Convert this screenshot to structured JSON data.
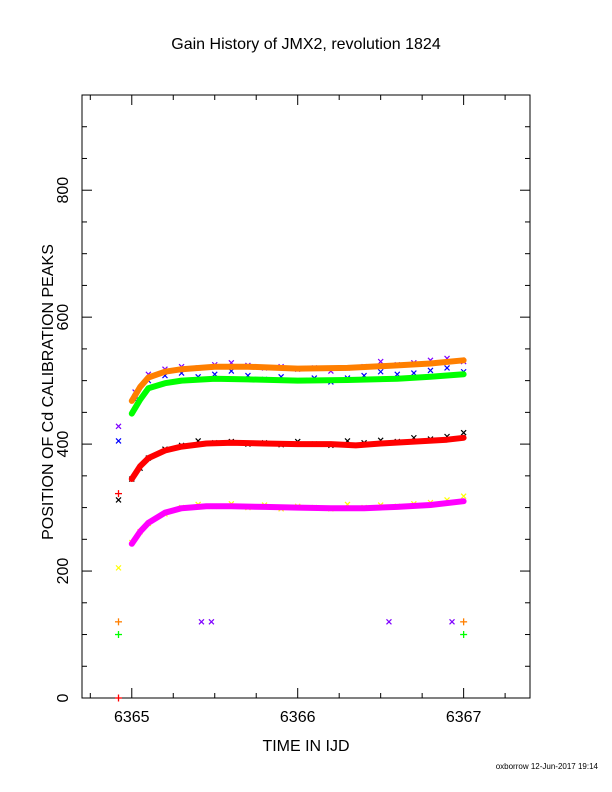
{
  "chart_data": {
    "type": "scatter",
    "title": "Gain History of JMX2, revolution 1824",
    "xlabel": "TIME IN IJD",
    "ylabel": "POSITION OF Cd CALIBRATION PEAKS",
    "xlim": [
      6364.7,
      6367.4
    ],
    "ylim": [
      0,
      950
    ],
    "x_ticks": [
      "6365",
      "6366",
      "6367"
    ],
    "y_ticks": [
      "0",
      "200",
      "400",
      "600",
      "800"
    ],
    "grid": false,
    "series": [
      {
        "color": "#7f00ff",
        "marker": "x",
        "x": [
          6364.92,
          6365.02,
          6365.1,
          6365.2,
          6365.3,
          6365.4,
          6365.5,
          6365.6,
          6365.7,
          6365.8,
          6365.9,
          6366.0,
          6366.1,
          6366.2,
          6366.3,
          6366.4,
          6366.5,
          6366.6,
          6366.7,
          6366.8,
          6366.9,
          6367.0
        ],
        "y": [
          428,
          482,
          510,
          518,
          522,
          520,
          525,
          528,
          524,
          520,
          522,
          518,
          520,
          515,
          520,
          522,
          530,
          525,
          528,
          532,
          535,
          530
        ]
      },
      {
        "color": "#0000ff",
        "marker": "x",
        "x": [
          6364.92,
          6365.02,
          6365.1,
          6365.2,
          6365.3,
          6365.4,
          6365.5,
          6365.6,
          6365.7,
          6365.8,
          6365.9,
          6366.0,
          6366.1,
          6366.2,
          6366.3,
          6366.4,
          6366.5,
          6366.6,
          6366.7,
          6366.8,
          6366.9,
          6367.0
        ],
        "y": [
          405,
          470,
          500,
          508,
          512,
          506,
          510,
          515,
          508,
          502,
          506,
          500,
          504,
          498,
          504,
          508,
          514,
          510,
          512,
          516,
          520,
          514
        ]
      },
      {
        "color": "#ff7f00",
        "marker": "line",
        "x": [
          6365.0,
          6365.05,
          6365.1,
          6365.2,
          6365.3,
          6365.5,
          6365.7,
          6366.0,
          6366.3,
          6366.6,
          6366.8,
          6367.0
        ],
        "y": [
          468,
          490,
          505,
          514,
          518,
          522,
          522,
          519,
          520,
          524,
          527,
          532
        ]
      },
      {
        "color": "#00ff00",
        "marker": "line",
        "x": [
          6365.0,
          6365.05,
          6365.1,
          6365.2,
          6365.3,
          6365.5,
          6365.7,
          6366.0,
          6366.3,
          6366.6,
          6366.8,
          6367.0
        ],
        "y": [
          448,
          470,
          488,
          496,
          500,
          503,
          502,
          500,
          501,
          503,
          506,
          510
        ]
      },
      {
        "color": "#000000",
        "marker": "x",
        "x": [
          6364.92,
          6365.0,
          6365.05,
          6365.1,
          6365.2,
          6365.3,
          6365.4,
          6365.5,
          6365.6,
          6365.7,
          6365.8,
          6365.9,
          6366.0,
          6366.1,
          6366.2,
          6366.3,
          6366.4,
          6366.5,
          6366.6,
          6366.7,
          6366.8,
          6366.9,
          6367.0
        ],
        "y": [
          312,
          345,
          362,
          378,
          392,
          398,
          405,
          402,
          404,
          400,
          402,
          399,
          404,
          400,
          398,
          405,
          402,
          406,
          404,
          410,
          408,
          412,
          418
        ]
      },
      {
        "color": "#ff0000",
        "marker": "line",
        "x": [
          6365.0,
          6365.05,
          6365.1,
          6365.2,
          6365.3,
          6365.45,
          6365.6,
          6365.8,
          6366.0,
          6366.2,
          6366.35,
          6366.5,
          6366.7,
          6366.9,
          6367.0
        ],
        "y": [
          345,
          365,
          378,
          390,
          396,
          401,
          402,
          401,
          400,
          400,
          398,
          401,
          404,
          407,
          410
        ]
      },
      {
        "color": "#ffff00",
        "marker": "x",
        "x": [
          6364.92,
          6365.0,
          6365.05,
          6365.1,
          6365.2,
          6365.3,
          6365.4,
          6365.5,
          6365.6,
          6365.7,
          6365.8,
          6365.9,
          6366.0,
          6366.1,
          6366.2,
          6366.3,
          6366.4,
          6366.5,
          6366.6,
          6366.7,
          6366.8,
          6366.9,
          6367.0
        ],
        "y": [
          205,
          245,
          262,
          275,
          290,
          300,
          305,
          302,
          306,
          300,
          304,
          298,
          302,
          300,
          298,
          305,
          300,
          304,
          302,
          306,
          308,
          312,
          318
        ]
      },
      {
        "color": "#ff00ff",
        "marker": "line",
        "x": [
          6365.0,
          6365.05,
          6365.1,
          6365.2,
          6365.3,
          6365.45,
          6365.6,
          6365.8,
          6366.0,
          6366.2,
          6366.4,
          6366.6,
          6366.8,
          6367.0
        ],
        "y": [
          243,
          262,
          276,
          292,
          299,
          302,
          302,
          301,
          300,
          299,
          299,
          301,
          304,
          310
        ]
      },
      {
        "color": "#ff7f00",
        "marker": "+",
        "x": [
          6364.92,
          6367.0
        ],
        "y": [
          120,
          120
        ]
      },
      {
        "color": "#00ff00",
        "marker": "+",
        "x": [
          6364.92,
          6367.0
        ],
        "y": [
          100,
          100
        ]
      },
      {
        "color": "#7f00ff",
        "marker": "x",
        "x": [
          6365.42,
          6365.48,
          6366.55,
          6366.93
        ],
        "y": [
          120,
          120,
          120,
          120
        ]
      },
      {
        "color": "#ff0000",
        "marker": "+",
        "x": [
          6364.92,
          6364.92
        ],
        "y": [
          322,
          0
        ]
      }
    ]
  },
  "footer": "oxborrow 12-Jun-2017 19:14"
}
